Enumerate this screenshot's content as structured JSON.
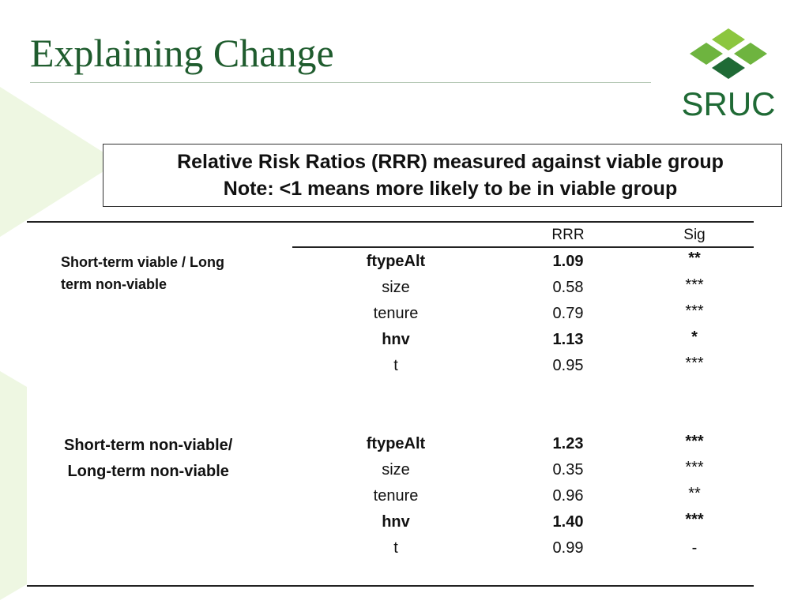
{
  "slide": {
    "title": "Explaining Change",
    "logo_text": "SRUC"
  },
  "note": {
    "line1": "Relative Risk Ratios (RRR) measured against viable group",
    "line2": "Note: <1 means more likely to be in viable group"
  },
  "table": {
    "columns": [
      "RRR",
      "Sig"
    ],
    "groups": [
      {
        "label_line1": "Short-term viable / Long",
        "label_line2": "term non-viable",
        "rows": [
          {
            "variable": "ftypeAlt",
            "rrr": "1.09",
            "sig": "**",
            "bold": true
          },
          {
            "variable": "size",
            "rrr": "0.58",
            "sig": "***",
            "bold": false
          },
          {
            "variable": "tenure",
            "rrr": "0.79",
            "sig": "***",
            "bold": false
          },
          {
            "variable": "hnv",
            "rrr": "1.13",
            "sig": "*",
            "bold": true
          },
          {
            "variable": "t",
            "rrr": "0.95",
            "sig": "***",
            "bold": false
          }
        ]
      },
      {
        "label_line1": "Short-term non-viable/",
        "label_line2": "Long-term non-viable",
        "rows": [
          {
            "variable": "ftypeAlt",
            "rrr": "1.23",
            "sig": "***",
            "bold": true
          },
          {
            "variable": "size",
            "rrr": "0.35",
            "sig": "***",
            "bold": false
          },
          {
            "variable": "tenure",
            "rrr": "0.96",
            "sig": "**",
            "bold": false
          },
          {
            "variable": "hnv",
            "rrr": "1.40",
            "sig": "***",
            "bold": true
          },
          {
            "variable": "t",
            "rrr": "0.99",
            "sig": "-",
            "bold": false
          }
        ]
      }
    ]
  },
  "colors": {
    "brand_dark_green": "#1f6a35",
    "brand_light_green": "#8cc63f",
    "background_tint": "#eef7e2"
  }
}
